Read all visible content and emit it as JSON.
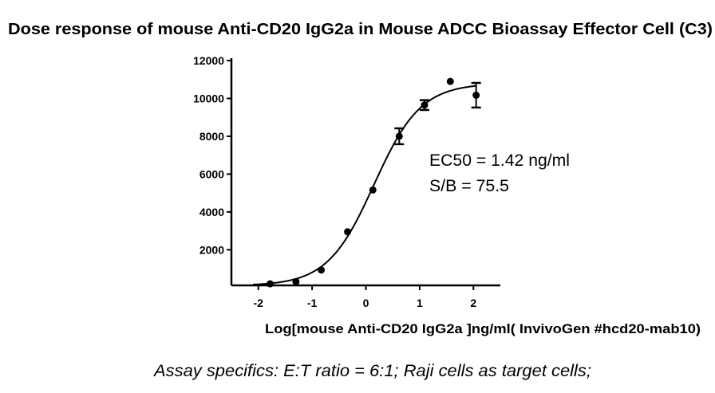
{
  "chart_data": {
    "type": "scatter",
    "title": "Dose response of mouse Anti-CD20 IgG2a  in Mouse ADCC Bioassay Effector Cell (C3)",
    "xlabel": "Log[mouse Anti-CD20 IgG2a ]ng/ml( InvivoGen #hcd20-mab10)",
    "ylabel": "",
    "xlim": [
      -2.5,
      2.5
    ],
    "ylim": [
      0,
      12200
    ],
    "xticks": [
      "-2",
      "-1",
      "0",
      "1",
      "2"
    ],
    "yticks": [
      "2000",
      "4000",
      "6000",
      "8000",
      "10000",
      "12000"
    ],
    "grid": false,
    "points": [
      {
        "x": -1.78,
        "y": 200,
        "err": 0
      },
      {
        "x": -1.3,
        "y": 310,
        "err": 0
      },
      {
        "x": -0.83,
        "y": 930,
        "err": 0
      },
      {
        "x": -0.34,
        "y": 2950,
        "err": 0
      },
      {
        "x": 0.13,
        "y": 5160,
        "err": 0
      },
      {
        "x": 0.62,
        "y": 8000,
        "err": 420
      },
      {
        "x": 1.09,
        "y": 9650,
        "err": 260
      },
      {
        "x": 1.57,
        "y": 10900,
        "err": 0
      },
      {
        "x": 2.05,
        "y": 10170,
        "err": 650
      }
    ],
    "fit": {
      "model": "4PL",
      "bottom": 100,
      "top": 10800,
      "logEC50": 0.152,
      "hill": 1.0
    },
    "annotations": [
      "EC50 = 1.42 ng/ml",
      "S/B = 75.5"
    ],
    "footnote": "Assay specifics: E:T ratio = 6:1; Raji cells as target cells;"
  }
}
